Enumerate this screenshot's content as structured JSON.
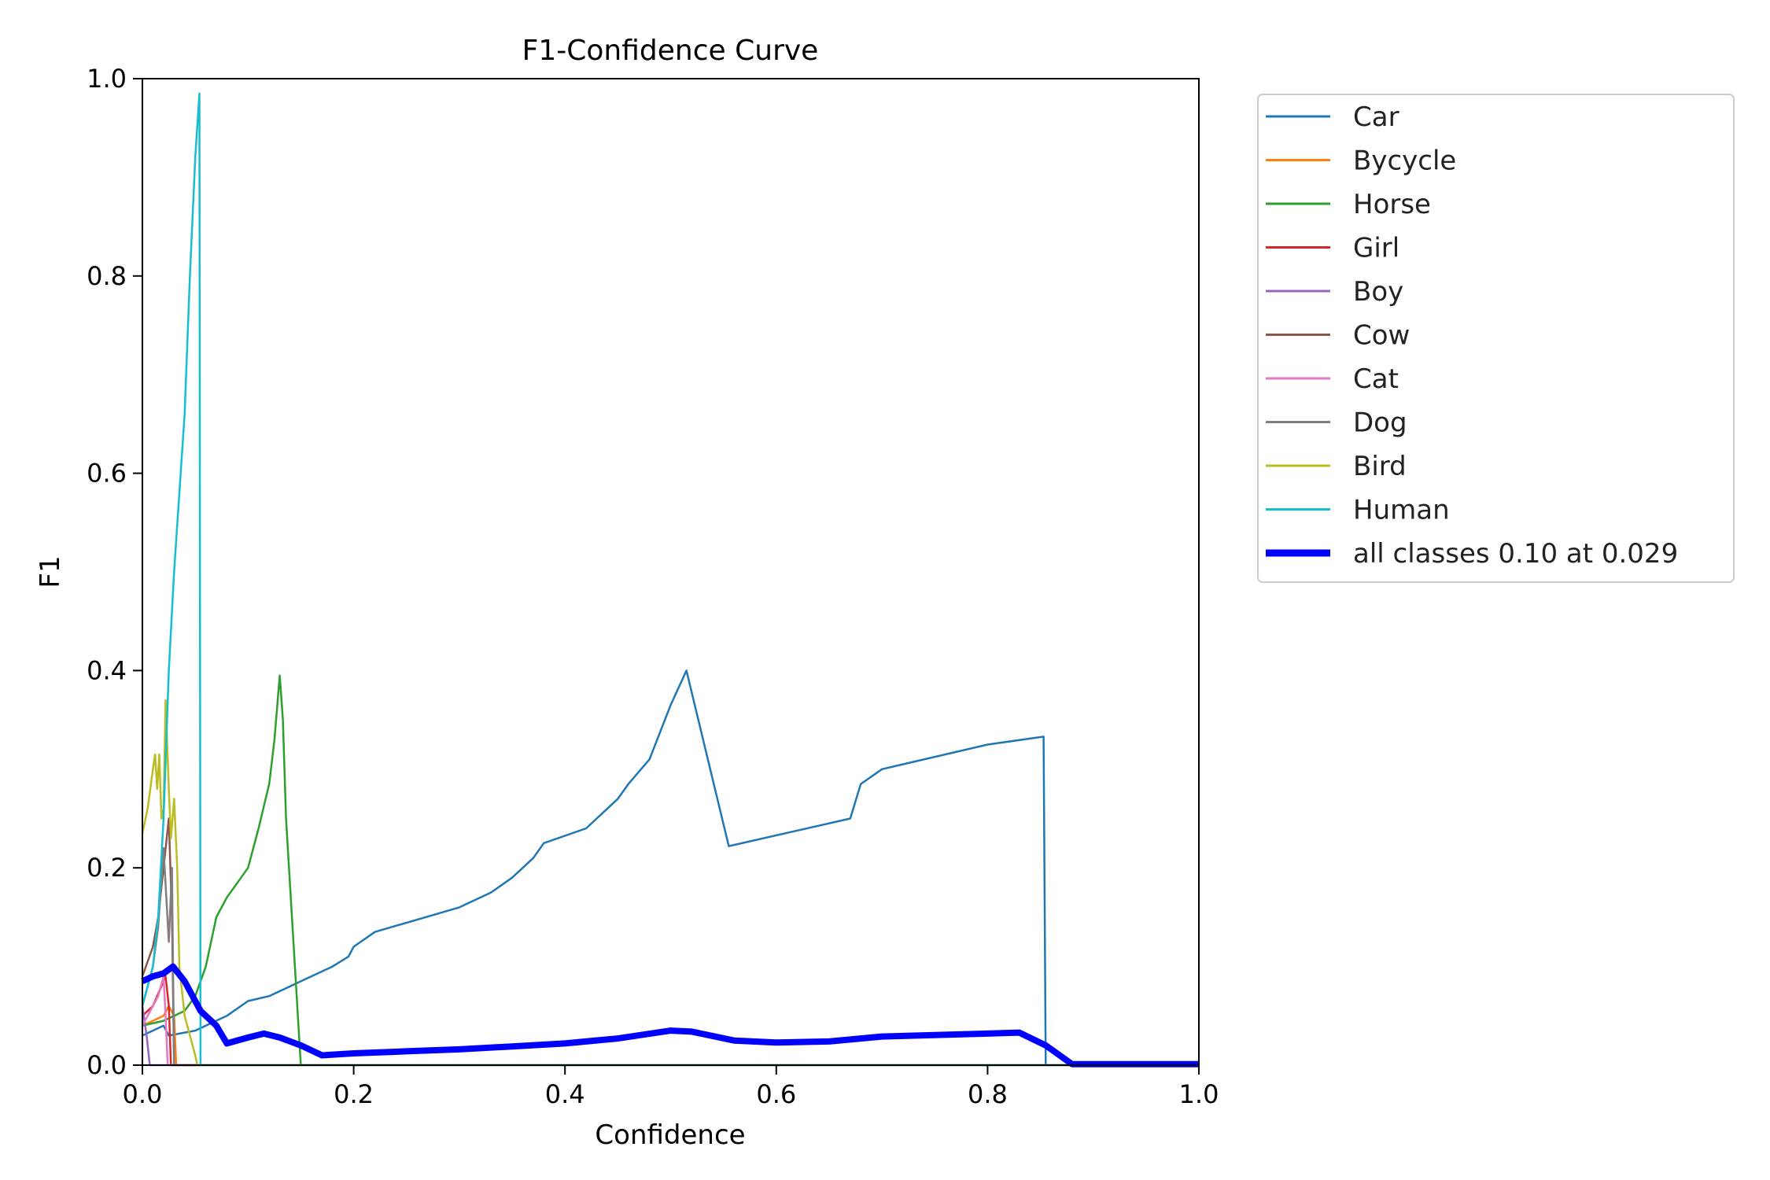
{
  "chart_data": {
    "type": "line",
    "title": "F1-Confidence Curve",
    "xlabel": "Confidence",
    "ylabel": "F1",
    "xlim": [
      0,
      1
    ],
    "ylim": [
      0,
      1
    ],
    "xticks": [
      "0.0",
      "0.2",
      "0.4",
      "0.6",
      "0.8",
      "1.0"
    ],
    "yticks": [
      "0.0",
      "0.2",
      "0.4",
      "0.6",
      "0.8",
      "1.0"
    ],
    "grid": false,
    "legend_position": "outside-upper-right",
    "series": [
      {
        "name": "Car",
        "color": "#1f77b4",
        "width": 2.5,
        "x": [
          0,
          0.02,
          0.025,
          0.05,
          0.08,
          0.1,
          0.12,
          0.15,
          0.18,
          0.195,
          0.2,
          0.22,
          0.3,
          0.33,
          0.35,
          0.37,
          0.38,
          0.42,
          0.43,
          0.45,
          0.46,
          0.48,
          0.5,
          0.515,
          0.555,
          0.67,
          0.68,
          0.7,
          0.8,
          0.853,
          0.855,
          1.0
        ],
        "y": [
          0.03,
          0.04,
          0.03,
          0.035,
          0.05,
          0.065,
          0.07,
          0.085,
          0.1,
          0.11,
          0.12,
          0.135,
          0.16,
          0.175,
          0.19,
          0.21,
          0.225,
          0.24,
          0.25,
          0.27,
          0.285,
          0.31,
          0.365,
          0.4,
          0.222,
          0.25,
          0.285,
          0.3,
          0.325,
          0.333,
          0,
          0
        ]
      },
      {
        "name": "Bycycle",
        "color": "#ff7f0e",
        "width": 2.5,
        "x": [
          0,
          0.01,
          0.02,
          0.025,
          0.03,
          0.032,
          1.0
        ],
        "y": [
          0.04,
          0.045,
          0.05,
          0.06,
          0.05,
          0,
          0
        ]
      },
      {
        "name": "Horse",
        "color": "#2ca02c",
        "width": 2.5,
        "x": [
          0,
          0.02,
          0.04,
          0.05,
          0.06,
          0.07,
          0.08,
          0.1,
          0.11,
          0.12,
          0.125,
          0.13,
          0.133,
          0.136,
          0.15,
          0.152,
          1.0
        ],
        "y": [
          0.04,
          0.045,
          0.055,
          0.07,
          0.1,
          0.15,
          0.17,
          0.2,
          0.24,
          0.285,
          0.33,
          0.395,
          0.35,
          0.25,
          0,
          0,
          0
        ]
      },
      {
        "name": "Girl",
        "color": "#d62728",
        "width": 2.5,
        "x": [
          0,
          0.01,
          0.018,
          0.022,
          0.025,
          0.027,
          1.0
        ],
        "y": [
          0.05,
          0.06,
          0.08,
          0.09,
          0.06,
          0,
          0
        ]
      },
      {
        "name": "Boy",
        "color": "#9467bd",
        "width": 2.5,
        "x": [
          0,
          0.004,
          0.006,
          0.007,
          1.0
        ],
        "y": [
          0.06,
          0.03,
          0.01,
          0,
          0
        ]
      },
      {
        "name": "Cow",
        "color": "#8c564b",
        "width": 2.5,
        "x": [
          0,
          0.01,
          0.015,
          0.02,
          0.025,
          0.028,
          0.03,
          1.0
        ],
        "y": [
          0.09,
          0.12,
          0.15,
          0.2,
          0.25,
          0.15,
          0,
          0
        ]
      },
      {
        "name": "Cat",
        "color": "#e377c2",
        "width": 2.5,
        "x": [
          0,
          0.01,
          0.015,
          0.02,
          0.022,
          0.024,
          1.0
        ],
        "y": [
          0.04,
          0.06,
          0.07,
          0.09,
          0.05,
          0,
          0
        ]
      },
      {
        "name": "Dog",
        "color": "#7f7f7f",
        "width": 2.5,
        "x": [
          0,
          0.01,
          0.015,
          0.02,
          0.025,
          0.028,
          0.03,
          1.0
        ],
        "y": [
          0.06,
          0.1,
          0.14,
          0.22,
          0.125,
          0.2,
          0,
          0
        ]
      },
      {
        "name": "Bird",
        "color": "#bcbd22",
        "width": 2.5,
        "x": [
          0,
          0.005,
          0.01,
          0.012,
          0.014,
          0.016,
          0.018,
          0.02,
          0.022,
          0.025,
          0.027,
          0.03,
          0.033,
          0.035,
          0.04,
          0.05,
          0.052,
          1.0
        ],
        "y": [
          0.235,
          0.26,
          0.3,
          0.315,
          0.28,
          0.315,
          0.25,
          0.26,
          0.37,
          0.28,
          0.23,
          0.27,
          0.2,
          0.1,
          0.05,
          0.01,
          0,
          0
        ]
      },
      {
        "name": "Human",
        "color": "#17becf",
        "width": 2.5,
        "x": [
          0,
          0.005,
          0.01,
          0.015,
          0.02,
          0.025,
          0.03,
          0.035,
          0.04,
          0.045,
          0.05,
          0.054,
          0.055,
          1.0
        ],
        "y": [
          0.06,
          0.08,
          0.1,
          0.15,
          0.25,
          0.4,
          0.5,
          0.58,
          0.66,
          0.8,
          0.92,
          0.985,
          0,
          0
        ]
      },
      {
        "name": "all classes 0.10 at 0.029",
        "color": "#0000ff",
        "width": 8,
        "x": [
          0,
          0.01,
          0.02,
          0.029,
          0.04,
          0.055,
          0.07,
          0.08,
          0.1,
          0.115,
          0.13,
          0.15,
          0.17,
          0.2,
          0.25,
          0.3,
          0.35,
          0.4,
          0.45,
          0.5,
          0.52,
          0.56,
          0.6,
          0.65,
          0.7,
          0.8,
          0.83,
          0.855,
          0.88,
          1.0
        ],
        "y": [
          0.085,
          0.09,
          0.093,
          0.1,
          0.085,
          0.055,
          0.04,
          0.022,
          0.028,
          0.032,
          0.028,
          0.02,
          0.01,
          0.012,
          0.014,
          0.016,
          0.019,
          0.022,
          0.027,
          0.035,
          0.034,
          0.025,
          0.023,
          0.024,
          0.029,
          0.032,
          0.033,
          0.02,
          0.001,
          0.001
        ]
      }
    ]
  }
}
